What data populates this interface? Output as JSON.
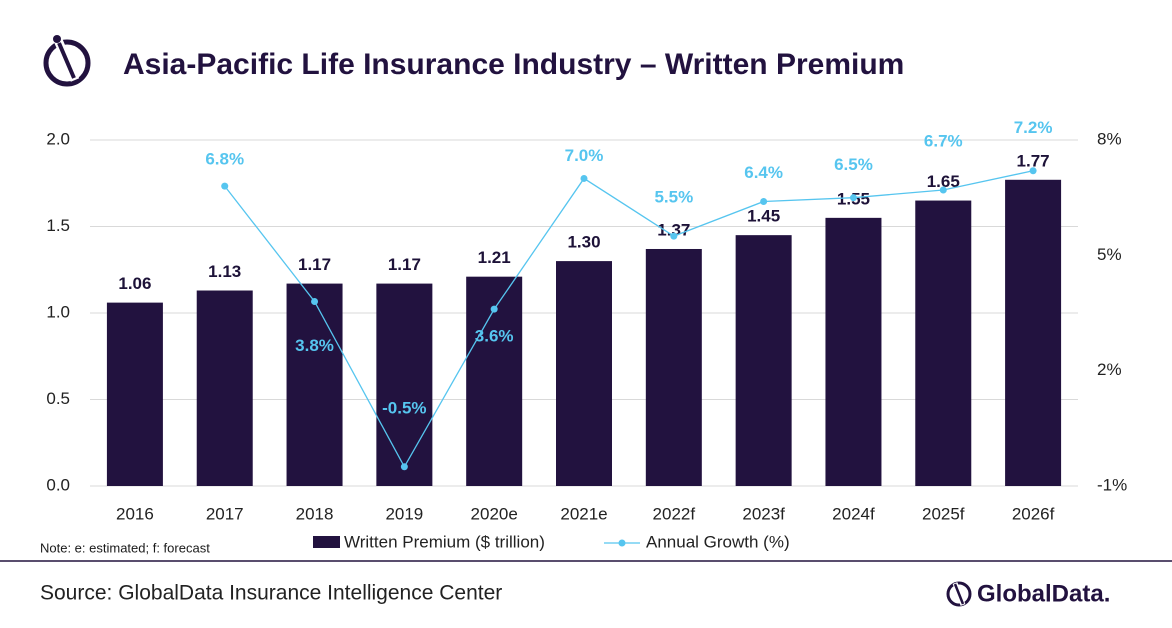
{
  "chart_data": {
    "type": "bar",
    "title": "Asia-Pacific Life Insurance Industry – Written Premium",
    "categories": [
      "2016",
      "2017",
      "2018",
      "2019",
      "2020e",
      "2021e",
      "2022f",
      "2023f",
      "2024f",
      "2025f",
      "2026f"
    ],
    "series": [
      {
        "name": "Written Premium ($ trillion)",
        "color": "#22123f",
        "type": "bar",
        "values": [
          1.06,
          1.13,
          1.17,
          1.17,
          1.21,
          1.3,
          1.37,
          1.45,
          1.55,
          1.65,
          1.77
        ],
        "value_labels": [
          "1.06",
          "1.13",
          "1.17",
          "1.17",
          "1.21",
          "1.30",
          "1.37",
          "1.45",
          "1.55",
          "1.65",
          "1.77"
        ]
      },
      {
        "name": "Annual Growth (%)",
        "color": "#56c5ef",
        "type": "line",
        "axis": "y2",
        "values": [
          null,
          6.8,
          3.8,
          -0.5,
          3.6,
          7.0,
          5.5,
          6.4,
          6.5,
          6.7,
          7.2
        ],
        "value_labels": [
          null,
          "6.8%",
          "3.8%",
          "-0.5%",
          "3.6%",
          "7.0%",
          "5.5%",
          "6.4%",
          "6.5%",
          "6.7%",
          "7.2%"
        ]
      }
    ],
    "ylim": [
      0,
      2
    ],
    "yticks": [
      {
        "value": 0,
        "label": "0.0"
      },
      0.5,
      {
        "value": 1,
        "label": "1.0"
      },
      1.5,
      {
        "value": 2,
        "label": "2.0"
      }
    ],
    "y2lim": [
      -1,
      8
    ],
    "y2ticks": [
      {
        "value": -1,
        "label": "-1%"
      },
      {
        "value": 2,
        "label": "2%"
      },
      {
        "value": 5,
        "label": "5%"
      },
      {
        "value": 8,
        "label": "8%"
      }
    ],
    "grid": true
  },
  "note": "Note: e: estimated; f: forecast",
  "source": "Source: GlobalData Insurance Intelligence Center",
  "brand": "GlobalData."
}
